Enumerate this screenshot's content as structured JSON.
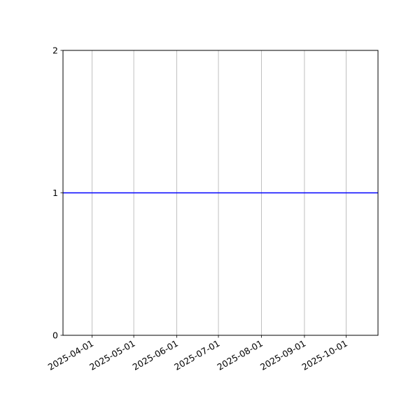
{
  "chart_data": {
    "type": "line",
    "title": "",
    "xlabel": "",
    "ylabel": "",
    "x_type": "date",
    "xlim": [
      "2025-03-11",
      "2025-10-24"
    ],
    "ylim": [
      0,
      2
    ],
    "x_ticks": [
      "2025-04-01",
      "2025-05-01",
      "2025-06-01",
      "2025-07-01",
      "2025-08-01",
      "2025-09-01",
      "2025-10-01"
    ],
    "y_ticks": [
      0,
      1,
      2
    ],
    "grid": "vertical (x-axis only)",
    "legend": "none",
    "series": [
      {
        "color": "#0000ff",
        "x": [
          "2025-03-11",
          "2025-10-24"
        ],
        "y": [
          1,
          1
        ]
      }
    ]
  }
}
